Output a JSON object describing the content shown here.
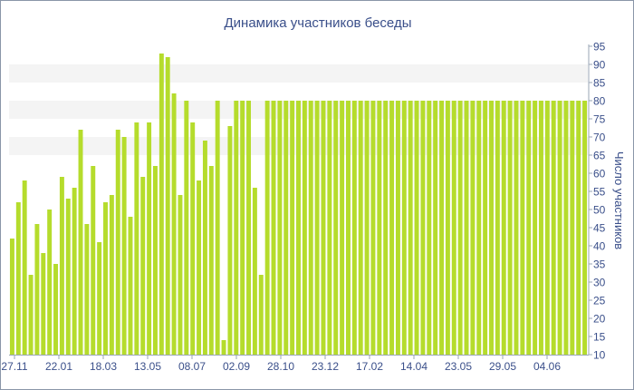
{
  "chart_data": {
    "type": "bar",
    "title": "Динамика участников беседы",
    "ylabel": "Число участников",
    "xlabel": "",
    "ylim": [
      10,
      95
    ],
    "yticks": [
      10,
      15,
      20,
      25,
      30,
      35,
      40,
      45,
      50,
      55,
      60,
      65,
      70,
      75,
      80,
      85,
      90,
      95
    ],
    "grid": true,
    "legend": "none",
    "bar_color": "#b5dc2c",
    "text_color": "#3a4f8a",
    "band_color": "#f4f4f4",
    "x_tick_labels": [
      "27.11",
      "22.01",
      "18.03",
      "13.05",
      "08.07",
      "02.09",
      "28.10",
      "23.12",
      "17.02",
      "14.04",
      "23.05",
      "29.05",
      "04.06"
    ],
    "values": [
      42,
      52,
      58,
      32,
      46,
      38,
      50,
      35,
      59,
      53,
      56,
      72,
      46,
      62,
      41,
      52,
      54,
      72,
      70,
      48,
      74,
      59,
      74,
      62,
      93,
      92,
      82,
      54,
      80,
      74,
      58,
      69,
      62,
      80,
      14,
      73,
      80,
      80,
      80,
      56,
      32,
      80,
      80,
      80,
      80,
      80,
      80,
      80,
      80,
      80,
      80,
      80,
      80,
      80,
      80,
      80,
      80,
      80,
      80,
      80,
      80,
      80,
      80,
      80,
      80,
      80,
      80,
      80,
      80,
      80,
      80,
      80,
      80,
      80,
      80,
      80,
      80,
      80,
      80,
      80,
      80,
      80,
      80,
      80,
      80,
      80,
      80,
      80,
      80,
      80,
      80,
      80,
      80
    ]
  }
}
